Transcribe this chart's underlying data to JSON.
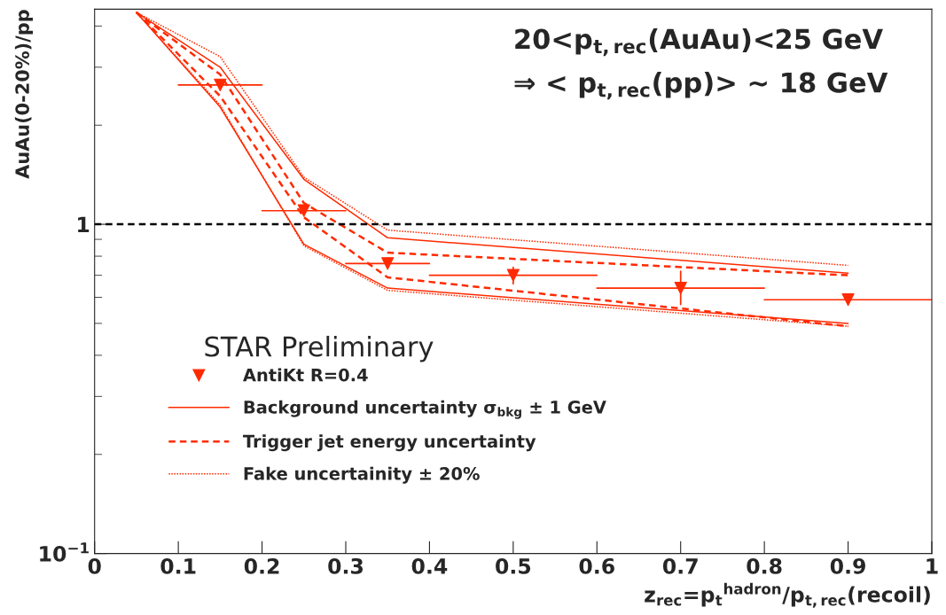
{
  "chart_data": {
    "type": "line",
    "xlabel": "z$_{rec}$=p$_{t}$$^{hadron}$/p$_{t,rec}$(recoil)",
    "ylabel": "AuAu(0-20%)/pp",
    "annotations": [
      "20<p$_{t,rec}$(AuAu)<25 GeV",
      "⇒ < p$_{t,rec}$(pp)> ~ 18 GeV",
      "STAR Preliminary"
    ],
    "log": "y",
    "xlim": [
      0,
      1
    ],
    "xticks": [
      0,
      0.1,
      0.2,
      0.3,
      0.4,
      0.5,
      0.6,
      0.7,
      0.8,
      0.9,
      1
    ],
    "ylim": [
      0.1,
      4.5
    ],
    "yticks": [
      {
        "value": 0.1,
        "label": "10$^{−1}$"
      },
      {
        "value": 0.2,
        "label": null
      },
      {
        "value": 0.3,
        "label": null
      },
      {
        "value": 0.4,
        "label": null
      },
      {
        "value": 0.5,
        "label": null
      },
      {
        "value": 0.6,
        "label": null
      },
      {
        "value": 0.7,
        "label": null
      },
      {
        "value": 0.8,
        "label": null
      },
      {
        "value": 0.9,
        "label": null
      },
      1,
      {
        "value": 2,
        "label": null
      },
      {
        "value": 3,
        "label": null
      },
      {
        "value": 4,
        "label": null
      }
    ],
    "grid": false,
    "legend": "bottom left",
    "ref_lines": [
      {
        "axis": "y",
        "value": 1,
        "color": "#000000",
        "line_style": "dashed"
      }
    ],
    "series": [
      {
        "type": "scatter",
        "name": "AntiKt R=0.4",
        "color": "#ff2a00",
        "marker": "triangle",
        "x": [
          0.15,
          0.25,
          0.35,
          0.5,
          0.7,
          0.9
        ],
        "values": [
          2.65,
          1.1,
          0.76,
          0.7,
          0.64,
          0.59
        ],
        "xerrors": [
          0.05,
          0.05,
          0.05,
          0.1,
          0.1,
          0.1
        ],
        "errors": [
          null,
          null,
          null,
          [
            0.66,
            0.74
          ],
          [
            0.57,
            0.72
          ],
          null
        ]
      },
      {
        "name": "Background uncertainty σ$_{bkg}$ ± 1 GeV",
        "color": "#ff2a00",
        "line_style": "solid",
        "x": [
          0.05,
          0.15,
          0.25,
          0.35,
          0.9
        ],
        "values": [
          4.4,
          3.0,
          1.37,
          0.91,
          0.71
        ]
      },
      {
        "color": "#ff2a00",
        "line_style": "solid",
        "x": [
          0.05,
          0.15,
          0.25,
          0.35,
          0.9
        ],
        "values": [
          4.4,
          2.27,
          0.87,
          0.64,
          0.5
        ]
      },
      {
        "name": "Trigger jet energy uncertainty",
        "color": "#ff2a00",
        "line_style": "dashed",
        "x": [
          0.05,
          0.15,
          0.25,
          0.35,
          0.9
        ],
        "values": [
          4.4,
          2.85,
          1.16,
          0.82,
          0.7
        ]
      },
      {
        "color": "#ff2a00",
        "line_style": "dashed",
        "x": [
          0.05,
          0.15,
          0.25,
          0.35,
          0.9
        ],
        "values": [
          4.4,
          2.45,
          1.05,
          0.69,
          0.49
        ]
      },
      {
        "name": "Fake uncertainity ± 20%",
        "color": "#ff2a00",
        "line_style": "dotted",
        "x": [
          0.05,
          0.15,
          0.25,
          0.35,
          0.9
        ],
        "values": [
          4.4,
          3.23,
          1.39,
          0.96,
          0.75
        ]
      },
      {
        "color": "#ff2a00",
        "line_style": "dotted",
        "x": [
          0.05,
          0.15,
          0.25,
          0.35,
          0.9
        ],
        "values": [
          4.4,
          2.3,
          0.86,
          0.63,
          0.49
        ]
      }
    ]
  }
}
